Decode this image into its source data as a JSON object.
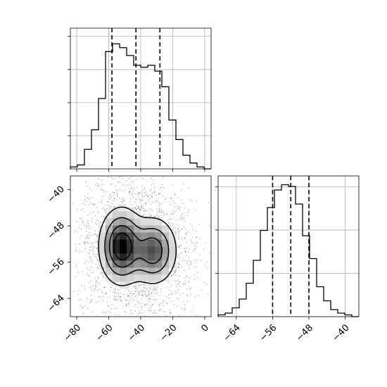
{
  "chart_data": {
    "type": "corner",
    "grid": true,
    "panels": [
      {
        "name": "hist-param-1",
        "type": "histogram",
        "xlim": [
          -84,
          4
        ],
        "bin_edges": [
          -84,
          -79.6,
          -75.2,
          -70.8,
          -66.4,
          -62,
          -57.6,
          -53.2,
          -48.8,
          -44.4,
          -40,
          -35.6,
          -31.2,
          -26.8,
          -22.4,
          -18,
          -13.6,
          -9.2,
          -4.8,
          -0.4,
          4
        ],
        "counts": [
          0.01,
          0.02,
          0.1,
          0.2,
          0.36,
          0.6,
          0.64,
          0.62,
          0.58,
          0.53,
          0.52,
          0.53,
          0.5,
          0.42,
          0.25,
          0.15,
          0.07,
          0.03,
          0.01,
          0
        ],
        "ylim": [
          0,
          0.72
        ],
        "quantiles": [
          -58,
          -43,
          -28
        ],
        "x_ticks": [
          -80,
          -60,
          -40,
          -20,
          0
        ],
        "y_tick_count": 4
      },
      {
        "name": "hist-param-2",
        "type": "histogram",
        "xlim": [
          -68,
          -37
        ],
        "bin_edges": [
          -68,
          -66.45,
          -64.9,
          -63.35,
          -61.8,
          -60.25,
          -58.7,
          -57.15,
          -55.6,
          -54.05,
          -52.5,
          -50.95,
          -49.4,
          -47.85,
          -46.3,
          -44.75,
          -43.2,
          -41.65,
          -40.1,
          -38.55,
          -37
        ],
        "counts": [
          0.01,
          0.02,
          0.05,
          0.1,
          0.19,
          0.32,
          0.49,
          0.62,
          0.72,
          0.75,
          0.74,
          0.64,
          0.46,
          0.33,
          0.17,
          0.09,
          0.04,
          0.02,
          0.01,
          0
        ],
        "ylim": [
          0,
          0.8
        ],
        "quantiles": [
          -56,
          -52,
          -48
        ],
        "x_ticks": [
          -64,
          -56,
          -48,
          -40
        ],
        "y_tick_count": 3
      },
      {
        "name": "density-2d",
        "type": "hist2d",
        "xlim": [
          -84,
          4
        ],
        "ylim": [
          -68,
          -37
        ],
        "x_ticks": [
          -80,
          -60,
          -40,
          -20,
          0
        ],
        "y_ticks": [
          -40,
          -48,
          -56,
          -64
        ],
        "modes": [
          {
            "x": -52,
            "y": -52.5,
            "sx": 7,
            "sy": 4.2,
            "w": 1.0
          },
          {
            "x": -32,
            "y": -53.5,
            "sx": 7.5,
            "sy": 3.8,
            "w": 0.72
          }
        ],
        "contour_levels": [
          0.12,
          0.32,
          0.55,
          0.78
        ]
      }
    ]
  }
}
